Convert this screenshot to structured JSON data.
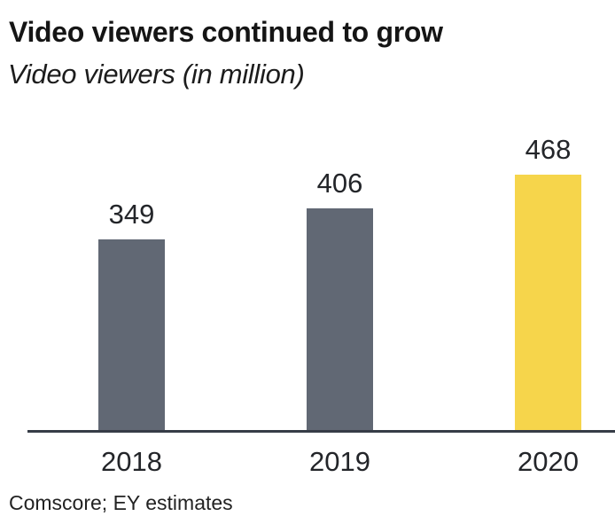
{
  "header": {
    "title": "Video viewers continued to grow",
    "subtitle": "Video viewers (in million)"
  },
  "footer": {
    "source": "Comscore; EY estimates"
  },
  "chart_data": {
    "type": "bar",
    "categories": [
      "2018",
      "2019",
      "2020"
    ],
    "values": [
      349,
      406,
      468
    ],
    "series": [
      {
        "name": "Video viewers (in million)",
        "values": [
          349,
          406,
          468
        ]
      }
    ],
    "title": "Video viewers continued to grow",
    "subtitle": "Video viewers (in million)",
    "xlabel": "",
    "ylabel": "Video viewers (in million)",
    "ylim": [
      0,
      500
    ],
    "grid": false,
    "legend": false,
    "data_labels": [
      349,
      406,
      468
    ],
    "bar_colors": [
      "#616874",
      "#616874",
      "#F6D54B"
    ],
    "highlight_category": "2020",
    "source": "Comscore; EY estimates"
  },
  "colors": {
    "bar_default": "#616874",
    "bar_highlight": "#F6D54B",
    "axis_line": "#363c47",
    "text": "#232529"
  }
}
